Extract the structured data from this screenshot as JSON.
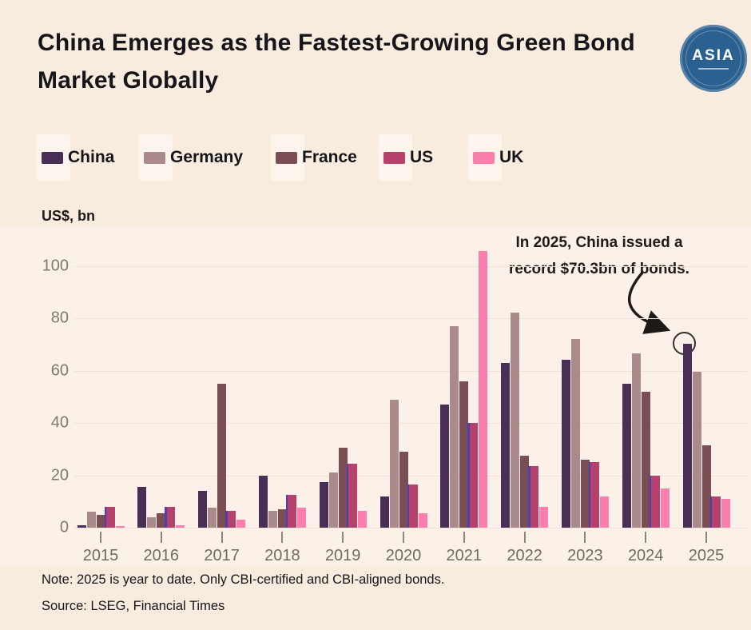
{
  "header": {
    "title": "China Emerges as the Fastest-Growing Green Bond Market Globally",
    "logo_text": "ASIA"
  },
  "legend": [
    {
      "label": "China",
      "color": "#492e56"
    },
    {
      "label": "Germany",
      "color": "#aa8a8b"
    },
    {
      "label": "France",
      "color": "#7b4e54"
    },
    {
      "label": "US",
      "color": "#b6416c"
    },
    {
      "label": "UK",
      "color": "#fa7fae"
    }
  ],
  "unit_label": "US$, bn",
  "annotation": {
    "line1": "In 2025, China issued a",
    "line2": "record $70.3bn of bonds."
  },
  "note": "Note: 2025 is year to date. Only CBI-certified  and CBI-aligned bonds.",
  "source": "Source: LSEG, Financial Times",
  "chart_data": {
    "type": "bar",
    "title": "China Emerges as the Fastest-Growing Green Bond Market Globally",
    "ylabel": "US$, bn",
    "xlabel": "",
    "categories": [
      "2015",
      "2016",
      "2017",
      "2018",
      "2019",
      "2020",
      "2021",
      "2022",
      "2023",
      "2024",
      "2025"
    ],
    "series": [
      {
        "name": "China",
        "color": "#492e56",
        "values": [
          1,
          15.5,
          14,
          20,
          17.5,
          12,
          47,
          63,
          64,
          55,
          70.3
        ]
      },
      {
        "name": "Germany",
        "color": "#aa8a8b",
        "values": [
          6,
          4,
          7.5,
          6.5,
          21,
          49,
          77,
          82,
          72,
          66.5,
          59.5
        ]
      },
      {
        "name": "France",
        "color": "#7b4e54",
        "values": [
          5,
          5.5,
          55,
          7,
          30.5,
          29,
          56,
          27.5,
          26,
          52,
          31.5
        ]
      },
      {
        "name": "US",
        "color": "#b6416c",
        "values": [
          8,
          8,
          6.5,
          12.5,
          24.5,
          16.5,
          40,
          23.5,
          25,
          20,
          12
        ]
      },
      {
        "name": "UK",
        "color": "#fa7fae",
        "values": [
          0.5,
          1,
          3,
          7.5,
          6.5,
          5.5,
          105.5,
          8,
          12,
          15,
          11
        ]
      }
    ],
    "yticks": [
      0,
      20,
      40,
      60,
      80,
      100
    ],
    "ylim": [
      0,
      115
    ],
    "grid": "horizontal",
    "legend_position": "top",
    "accent_line_series": "US",
    "accent_line_color": "#4b41ae",
    "annotated_point": {
      "series": "China",
      "category": "2025",
      "value": 70.3
    }
  }
}
